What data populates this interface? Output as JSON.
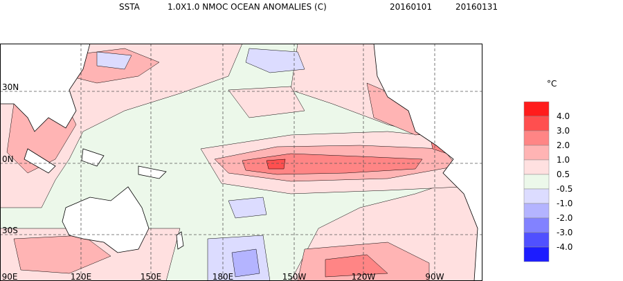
{
  "header": {
    "field": "SSTA",
    "title": "1.0X1.0 NMOC OCEAN ANOMALIES (C)",
    "start_date": "20160101",
    "end_date": "20160131"
  },
  "map": {
    "lat_labels": [
      "30N",
      "0N",
      "30S"
    ],
    "lon_labels": [
      "90E",
      "120E",
      "150E",
      "180E",
      "150W",
      "120W",
      "90W"
    ]
  },
  "legend": {
    "unit": "°C",
    "labels": [
      "4.0",
      "3.0",
      "2.0",
      "1.0",
      "0.5",
      "-0.5",
      "-1.0",
      "-2.0",
      "-3.0",
      "-4.0"
    ],
    "colors": [
      "#ff1c1c",
      "#ff4f4f",
      "#ff8585",
      "#ffb4b4",
      "#ffe0e0",
      "#ecf8ea",
      "#dcdcff",
      "#b4b4ff",
      "#8282ff",
      "#5050ff",
      "#1c1cff"
    ]
  }
}
